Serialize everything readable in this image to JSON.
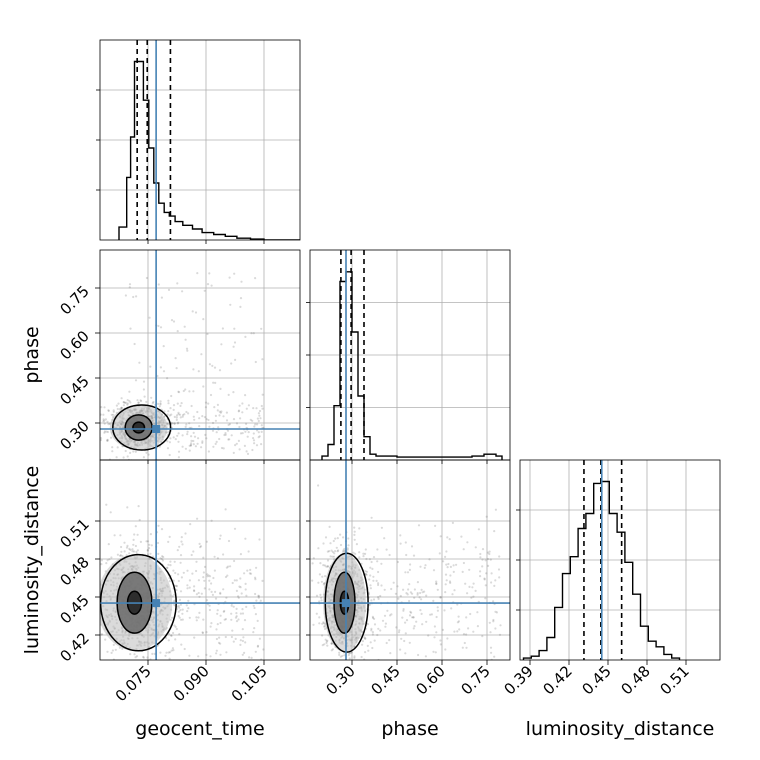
{
  "chart_data": {
    "type": "corner",
    "title": "",
    "parameters": [
      "geocent_time",
      "phase",
      "luminosity_distance"
    ],
    "truth": {
      "geocent_time": 0.0771,
      "phase": 0.28,
      "luminosity_distance": 0.4452
    },
    "truth_color": "#4682b4",
    "grid": true,
    "tick_labels": {
      "geocent_time": [
        "0.075",
        "0.090",
        "0.105"
      ],
      "phase": [
        "0.30",
        "0.45",
        "0.60",
        "0.75"
      ],
      "luminosity_distance": [
        "0.39",
        "0.42",
        "0.45",
        "0.48",
        "0.51"
      ]
    },
    "hist_1d": {
      "geocent_time": {
        "range": [
          0.0675,
          0.1188
        ],
        "bins": [
          0.0675,
          0.0695,
          0.0705,
          0.0715,
          0.0725,
          0.0738,
          0.0752,
          0.0765,
          0.0778,
          0.0792,
          0.0805,
          0.082,
          0.084,
          0.0865,
          0.089,
          0.092,
          0.095,
          0.098,
          0.1015,
          0.105,
          0.1188
        ],
        "counts": [
          0.07,
          0.34,
          0.56,
          0.97,
          0.97,
          0.76,
          0.5,
          0.31,
          0.2,
          0.15,
          0.13,
          0.1,
          0.08,
          0.06,
          0.04,
          0.03,
          0.02,
          0.01,
          0.005,
          0
        ],
        "quantiles": [
          0.0722,
          0.0748,
          0.0808
        ]
      },
      "phase": {
        "range": [
          0.2,
          0.8
        ],
        "bins": [
          0.2,
          0.22,
          0.24,
          0.26,
          0.28,
          0.3,
          0.32,
          0.34,
          0.36,
          0.38,
          0.4,
          0.45,
          0.5,
          0.55,
          0.6,
          0.65,
          0.7,
          0.74,
          0.78,
          0.8
        ],
        "counts": [
          0.02,
          0.08,
          0.28,
          0.92,
          0.97,
          0.66,
          0.33,
          0.12,
          0.03,
          0.02,
          0.02,
          0.015,
          0.015,
          0.015,
          0.015,
          0.015,
          0.02,
          0.03,
          0.02
        ],
        "quantiles": [
          0.263,
          0.297,
          0.34
        ]
      },
      "luminosity_distance": {
        "range": [
          0.385,
          0.515
        ],
        "bins": [
          0.385,
          0.391,
          0.397,
          0.403,
          0.409,
          0.415,
          0.421,
          0.427,
          0.433,
          0.439,
          0.445,
          0.451,
          0.457,
          0.463,
          0.469,
          0.475,
          0.481,
          0.487,
          0.493,
          0.499,
          0.505
        ],
        "counts": [
          0.01,
          0.02,
          0.05,
          0.12,
          0.28,
          0.46,
          0.55,
          0.7,
          0.78,
          0.94,
          0.95,
          0.78,
          0.68,
          0.52,
          0.35,
          0.18,
          0.1,
          0.07,
          0.03,
          0.01
        ],
        "quantiles": [
          0.4315,
          0.4445,
          0.4605
        ]
      }
    },
    "hist_2d": [
      {
        "x": "geocent_time",
        "y": "phase",
        "center": [
          0.0726,
          0.285
        ],
        "contour_radii_x": [
          0.0015,
          0.0035,
          0.0065
        ],
        "contour_radii_y": [
          0.018,
          0.042,
          0.075
        ],
        "scatter_extent": {
          "x": [
            0.068,
            0.105
          ],
          "y": [
            0.2,
            0.8
          ]
        }
      },
      {
        "x": "geocent_time",
        "y": "luminosity_distance",
        "center": [
          0.0715,
          0.4455
        ],
        "contour_radii_x": [
          0.0018,
          0.0045,
          0.0085
        ],
        "contour_radii_y": [
          0.009,
          0.024,
          0.038
        ],
        "scatter_extent": {
          "x": [
            0.068,
            0.105
          ],
          "y": [
            0.385,
            0.515
          ]
        }
      },
      {
        "x": "phase",
        "y": "luminosity_distance",
        "center": [
          0.275,
          0.4455
        ],
        "contour_radii_x": [
          0.014,
          0.035,
          0.062
        ],
        "contour_radii_y": [
          0.009,
          0.024,
          0.039
        ],
        "scatter_extent": {
          "x": [
            0.2,
            0.8
          ],
          "y": [
            0.385,
            0.515
          ]
        }
      }
    ]
  }
}
